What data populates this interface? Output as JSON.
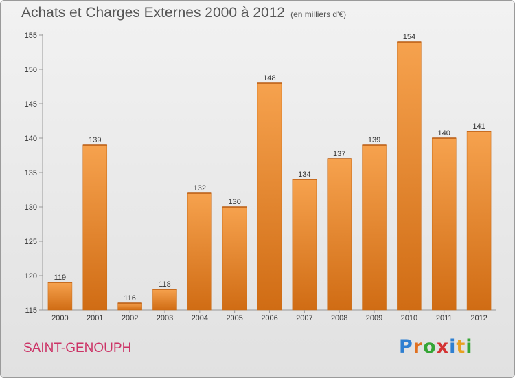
{
  "title": "Achats et Charges Externes 2000 à 2012",
  "subtitle": "(en milliers d'€)",
  "city": "SAINT-GENOUPH",
  "logo": [
    "P",
    "r",
    "o",
    "x",
    "i",
    "t",
    "i"
  ],
  "logo_colors": [
    "#2e7fd1",
    "#e07020",
    "#35a535",
    "#d43232",
    "#2e7fd1",
    "#e8a020",
    "#35a535"
  ],
  "colors": {
    "bar_top": "#f6a24e",
    "bar_bottom": "#d06c14",
    "text": "#555555",
    "city": "#cc3366"
  },
  "chart_data": {
    "type": "bar",
    "categories": [
      "2000",
      "2001",
      "2002",
      "2003",
      "2004",
      "2005",
      "2006",
      "2007",
      "2008",
      "2009",
      "2010",
      "2011",
      "2012"
    ],
    "values": [
      119,
      139,
      116,
      118,
      132,
      130,
      148,
      134,
      137,
      139,
      154,
      140,
      141
    ],
    "ylim": [
      115,
      155
    ],
    "yticks": [
      115,
      120,
      125,
      130,
      135,
      140,
      145,
      150,
      155
    ],
    "grid": false
  }
}
